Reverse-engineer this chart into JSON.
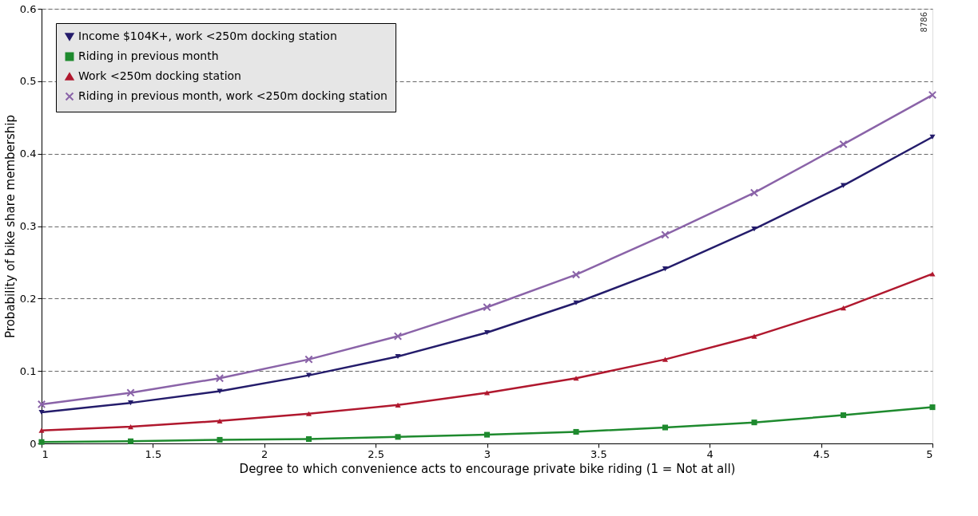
{
  "chart_data": {
    "type": "line",
    "xlabel": "Degree to which convenience acts to encourage private bike riding (1 = Not at all)",
    "ylabel": "Probability of bike share membership",
    "x": [
      1,
      1.4,
      1.8,
      2.2,
      2.6,
      3,
      3.4,
      3.8,
      4.2,
      4.6,
      5
    ],
    "series": [
      {
        "name": "Income $104K+, work <250m docking station",
        "color": "#241c6b",
        "marker": "triangle-down",
        "values": [
          0.043,
          0.056,
          0.072,
          0.094,
          0.12,
          0.153,
          0.194,
          0.241,
          0.296,
          0.356,
          0.423
        ]
      },
      {
        "name": "Riding in previous month",
        "color": "#1e8a2e",
        "marker": "square",
        "values": [
          0.002,
          0.003,
          0.005,
          0.006,
          0.009,
          0.012,
          0.016,
          0.022,
          0.029,
          0.039,
          0.05
        ]
      },
      {
        "name": "Work <250m docking station",
        "color": "#b0182e",
        "marker": "triangle",
        "values": [
          0.018,
          0.023,
          0.031,
          0.041,
          0.053,
          0.07,
          0.09,
          0.116,
          0.148,
          0.187,
          0.234
        ]
      },
      {
        "name": "Riding in previous month, work <250m docking station",
        "color": "#8a63a8",
        "marker": "cross",
        "values": [
          0.054,
          0.07,
          0.09,
          0.116,
          0.148,
          0.188,
          0.233,
          0.288,
          0.346,
          0.413,
          0.481
        ]
      }
    ],
    "xlim": [
      1,
      5
    ],
    "xticks": [
      1,
      1.5,
      2,
      2.5,
      3,
      3.5,
      4,
      4.5,
      5
    ],
    "ylim": [
      0,
      0.6
    ],
    "yticks": [
      0,
      0.1,
      0.2,
      0.3,
      0.4,
      0.5,
      0.6
    ],
    "grid": "y",
    "legend": "top left",
    "line_style": "solid",
    "annotations": [
      "8786"
    ]
  }
}
